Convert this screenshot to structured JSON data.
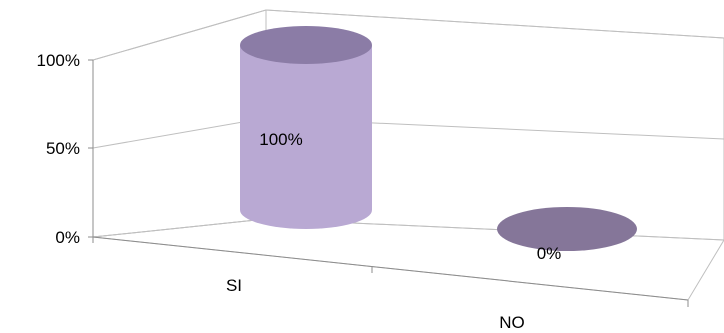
{
  "chart_data": {
    "type": "bar",
    "style": "3d-cylinder",
    "categories": [
      "SI",
      "NO"
    ],
    "values": [
      100,
      0
    ],
    "data_labels": [
      "100%",
      "0%"
    ],
    "title": "",
    "xlabel": "",
    "ylabel": "",
    "ylim": [
      0,
      100
    ],
    "y_ticks": [
      "0%",
      "50%",
      "100%"
    ],
    "grid": true,
    "legend": "none",
    "colors": {
      "side": "#b9a9d3",
      "top": "#8b7ca6",
      "bottom_ellipse": "#857699"
    }
  }
}
